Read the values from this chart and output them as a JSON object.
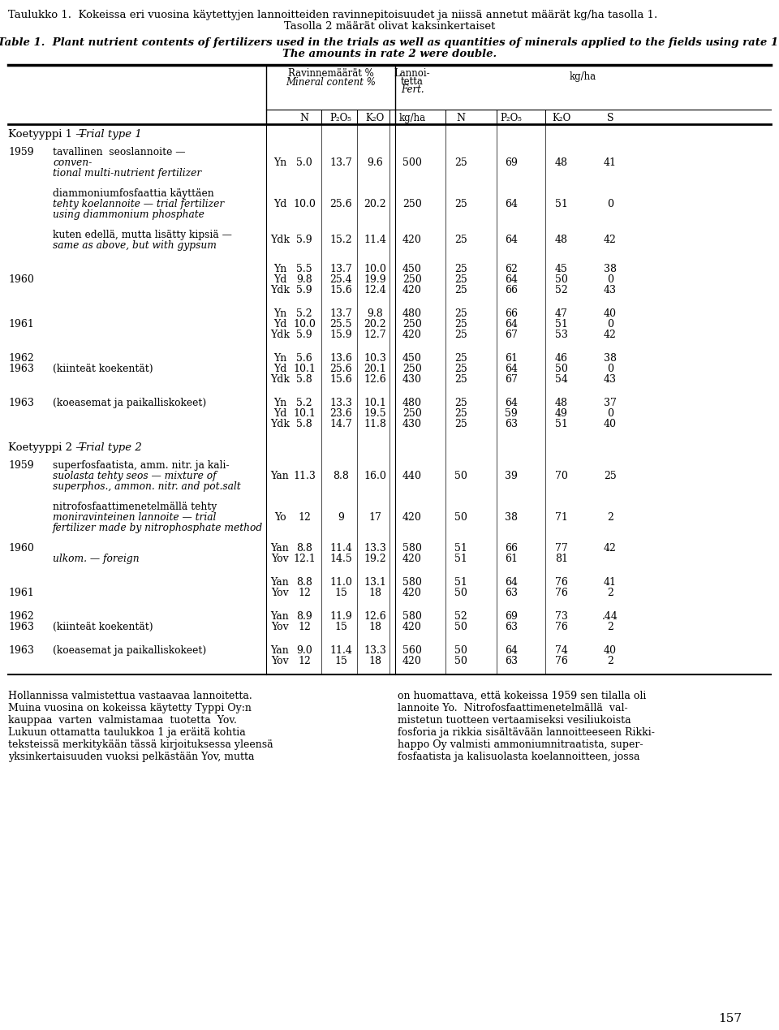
{
  "title_fi": "Taulukko 1.  Kokeissa eri vuosina käytettyjen lannoitteiden ravinnepitoisuudet ja niissä annetut määrät kg/ha tasolla 1.",
  "title_fi2": "Tasolla 2 määrät olivat kaksinkertaiset",
  "title_en": "Table 1.  Plant nutrient contents of fertilizers used in the trials as well as quantities of minerals applied to the fields using rate 1.",
  "title_en2": "The amounts in rate 2 were double.",
  "page_number": "157",
  "bg_color": "#e8e8e0",
  "footer_left": [
    "Hollannissa valmistettua vastaavaa lannoitetta.",
    "Muina vuosina on kokeissa käytetty Typpi Oy:n",
    "kauppaa  varten  valmistamaa  tuotetta  Yov.",
    "Lukuun ottamatta taulukkoa 1 ja eräitä kohtia",
    "teksteissä merkitykään tässä kirjoituksessa yleensä",
    "yksinkertaisuuden vuoksi pelkästään Yov, mutta"
  ],
  "footer_right": [
    "on huomattava, että kokeissa 1959 sen tilalla oli",
    "lannoite Yo.  Nitrofosfaattimenetelmällä  val-",
    "mistetun tuotteen vertaamiseksi vesiliukoista",
    "fosforia ja rikkia sisältävään lannoitteeseen Rikki-",
    "happo Oy valmisti ammoniumnitraatista, super-",
    "fosfaatista ja kalisuolasta koelannoitteen, jossa"
  ]
}
